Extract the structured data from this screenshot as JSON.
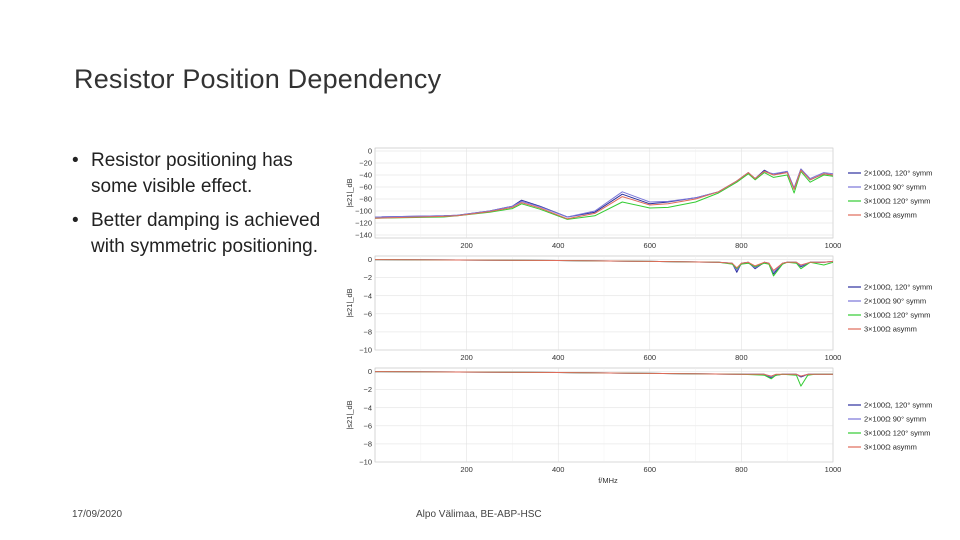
{
  "slide": {
    "title": "Resistor Position Dependency",
    "bullets": [
      "Resistor positioning has some visible effect.",
      "Better damping is achieved with symmetric positioning."
    ],
    "bullet_symbol": "•",
    "footer_date": "17/09/2020",
    "footer_author": "Alpo Välimaa, BE-ABP-HSC"
  },
  "chart_data": [
    {
      "type": "line",
      "ylabel": "|s21|_dB",
      "xlabel": "",
      "xlim": [
        0,
        1000
      ],
      "ylim": [
        -145,
        5
      ],
      "xticks": [
        200,
        400,
        600,
        800,
        1000
      ],
      "yticks": [
        0,
        -20,
        -40,
        -60,
        -80,
        -100,
        -120,
        -140
      ],
      "grid": true,
      "legend_position": "right",
      "series": [
        {
          "name": "2×100Ω, 120° symm",
          "color": "#2b2f9e",
          "x": [
            0,
            150,
            180,
            250,
            300,
            320,
            360,
            420,
            480,
            540,
            600,
            640,
            700,
            750,
            790,
            815,
            830,
            850,
            870,
            900,
            915,
            930,
            950,
            980,
            1000
          ],
          "y": [
            -110,
            -108,
            -107,
            -100,
            -92,
            -82,
            -92,
            -110,
            -102,
            -72,
            -88,
            -85,
            -78,
            -68,
            -50,
            -36,
            -46,
            -32,
            -40,
            -34,
            -62,
            -30,
            -48,
            -38,
            -40
          ]
        },
        {
          "name": "2×100Ω 90° symm",
          "color": "#7a76d8",
          "x": [
            0,
            150,
            180,
            250,
            300,
            320,
            360,
            420,
            480,
            540,
            600,
            640,
            700,
            750,
            790,
            815,
            830,
            850,
            870,
            900,
            915,
            930,
            950,
            980,
            1000
          ],
          "y": [
            -110,
            -108,
            -107,
            -100,
            -92,
            -84,
            -93,
            -110,
            -100,
            -68,
            -85,
            -84,
            -78,
            -68,
            -50,
            -36,
            -46,
            -34,
            -38,
            -34,
            -62,
            -30,
            -46,
            -36,
            -38
          ]
        },
        {
          "name": "3×100Ω 120° symm",
          "color": "#33cc33",
          "x": [
            0,
            150,
            180,
            250,
            300,
            320,
            360,
            420,
            480,
            540,
            600,
            640,
            700,
            750,
            790,
            815,
            830,
            850,
            870,
            900,
            915,
            930,
            950,
            980,
            1000
          ],
          "y": [
            -112,
            -110,
            -108,
            -102,
            -96,
            -88,
            -97,
            -114,
            -108,
            -85,
            -95,
            -94,
            -85,
            -70,
            -52,
            -38,
            -48,
            -36,
            -44,
            -40,
            -70,
            -34,
            -52,
            -40,
            -42
          ]
        },
        {
          "name": "3×100Ω asymm",
          "color": "#e06a5a",
          "x": [
            0,
            150,
            180,
            250,
            300,
            320,
            360,
            420,
            480,
            540,
            600,
            640,
            700,
            750,
            790,
            815,
            830,
            850,
            870,
            900,
            915,
            930,
            950,
            980,
            1000
          ],
          "y": [
            -112,
            -109,
            -108,
            -101,
            -94,
            -86,
            -95,
            -113,
            -104,
            -76,
            -90,
            -88,
            -80,
            -68,
            -50,
            -36,
            -46,
            -34,
            -40,
            -36,
            -64,
            -32,
            -48,
            -38,
            -40
          ]
        }
      ]
    },
    {
      "type": "line",
      "ylabel": "|s21|_dB",
      "xlabel": "",
      "xlim": [
        0,
        1000
      ],
      "ylim": [
        -10,
        0.4
      ],
      "xticks": [
        200,
        400,
        600,
        800,
        1000
      ],
      "yticks": [
        0,
        -2,
        -4,
        -6,
        -8,
        -10
      ],
      "grid": true,
      "legend_position": "right",
      "series": [
        {
          "name": "2×100Ω, 120° symm",
          "color": "#2b2f9e",
          "x": [
            0,
            400,
            600,
            750,
            780,
            790,
            800,
            815,
            830,
            850,
            860,
            870,
            890,
            900,
            920,
            930,
            950,
            980,
            1000
          ],
          "y": [
            0,
            -0.1,
            -0.2,
            -0.3,
            -0.4,
            -1.4,
            -0.4,
            -0.3,
            -1.0,
            -0.3,
            -0.4,
            -1.6,
            -0.4,
            -0.3,
            -0.3,
            -0.8,
            -0.3,
            -0.3,
            -0.2
          ]
        },
        {
          "name": "2×100Ω 90° symm",
          "color": "#7a76d8",
          "x": [
            0,
            400,
            600,
            750,
            780,
            790,
            800,
            815,
            830,
            850,
            860,
            870,
            890,
            900,
            920,
            930,
            950,
            980,
            1000
          ],
          "y": [
            0,
            -0.1,
            -0.2,
            -0.3,
            -0.4,
            -1.2,
            -0.4,
            -0.3,
            -0.9,
            -0.3,
            -0.4,
            -1.4,
            -0.4,
            -0.3,
            -0.3,
            -0.7,
            -0.3,
            -0.3,
            -0.2
          ]
        },
        {
          "name": "3×100Ω 120° symm",
          "color": "#33cc33",
          "x": [
            0,
            400,
            600,
            750,
            780,
            790,
            800,
            815,
            830,
            850,
            860,
            870,
            890,
            900,
            920,
            930,
            950,
            980,
            1000
          ],
          "y": [
            0,
            -0.1,
            -0.2,
            -0.3,
            -0.5,
            -1.0,
            -0.5,
            -0.4,
            -0.8,
            -0.4,
            -0.5,
            -1.8,
            -0.5,
            -0.3,
            -0.4,
            -1.0,
            -0.3,
            -0.6,
            -0.3
          ]
        },
        {
          "name": "3×100Ω asymm",
          "color": "#e06a5a",
          "x": [
            0,
            400,
            600,
            750,
            780,
            790,
            800,
            815,
            830,
            850,
            860,
            870,
            890,
            900,
            920,
            930,
            950,
            980,
            1000
          ],
          "y": [
            0,
            -0.1,
            -0.2,
            -0.3,
            -0.4,
            -0.9,
            -0.4,
            -0.3,
            -0.7,
            -0.3,
            -0.4,
            -1.2,
            -0.4,
            -0.3,
            -0.3,
            -0.6,
            -0.3,
            -0.3,
            -0.2
          ]
        }
      ]
    },
    {
      "type": "line",
      "ylabel": "|s21|_dB",
      "xlabel": "f/MHz",
      "xlim": [
        0,
        1000
      ],
      "ylim": [
        -10,
        0.4
      ],
      "xticks": [
        200,
        400,
        600,
        800,
        1000
      ],
      "yticks": [
        0,
        -2,
        -4,
        -6,
        -8,
        -10
      ],
      "grid": true,
      "legend_position": "right",
      "series": [
        {
          "name": "2×100Ω, 120° symm",
          "color": "#2b2f9e",
          "x": [
            0,
            400,
            600,
            800,
            850,
            865,
            875,
            890,
            920,
            930,
            945,
            960,
            1000
          ],
          "y": [
            0,
            -0.1,
            -0.2,
            -0.3,
            -0.3,
            -0.7,
            -0.4,
            -0.3,
            -0.3,
            -0.6,
            -0.3,
            -0.3,
            -0.3
          ]
        },
        {
          "name": "2×100Ω 90° symm",
          "color": "#7a76d8",
          "x": [
            0,
            400,
            600,
            800,
            850,
            865,
            875,
            890,
            920,
            930,
            945,
            960,
            1000
          ],
          "y": [
            0,
            -0.1,
            -0.2,
            -0.3,
            -0.3,
            -0.6,
            -0.4,
            -0.3,
            -0.3,
            -0.5,
            -0.3,
            -0.3,
            -0.3
          ]
        },
        {
          "name": "3×100Ω 120° symm",
          "color": "#33cc33",
          "x": [
            0,
            400,
            600,
            800,
            850,
            865,
            875,
            890,
            920,
            930,
            945,
            960,
            1000
          ],
          "y": [
            0,
            -0.1,
            -0.2,
            -0.3,
            -0.4,
            -0.8,
            -0.4,
            -0.3,
            -0.4,
            -1.6,
            -0.4,
            -0.3,
            -0.3
          ]
        },
        {
          "name": "3×100Ω asymm",
          "color": "#e06a5a",
          "x": [
            0,
            400,
            600,
            800,
            850,
            865,
            875,
            890,
            920,
            930,
            945,
            960,
            1000
          ],
          "y": [
            0,
            -0.1,
            -0.2,
            -0.3,
            -0.3,
            -0.5,
            -0.3,
            -0.3,
            -0.3,
            -0.5,
            -0.3,
            -0.3,
            -0.3
          ]
        }
      ]
    }
  ]
}
